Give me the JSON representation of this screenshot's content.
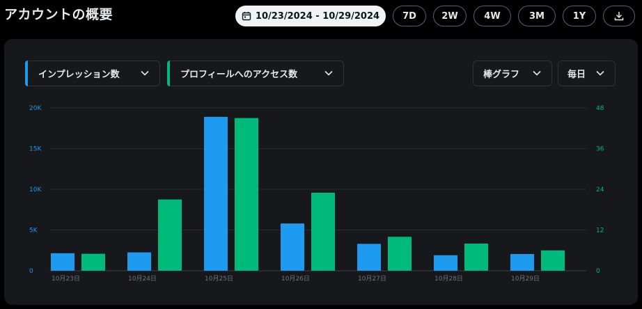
{
  "header": {
    "title": "アカウントの概要"
  },
  "toolbar": {
    "date_range": "10/23/2024 - 10/29/2024",
    "periods": [
      "7D",
      "2W",
      "4W",
      "3M",
      "1Y"
    ]
  },
  "controls": {
    "metric1": "インプレッション数",
    "metric2": "プロフィールへのアクセス数",
    "chart_type": "棒グラフ",
    "interval": "毎日"
  },
  "colors": {
    "impressions": "#1d9bf0",
    "profile_visits": "#00ba7c",
    "background": "#16181c"
  },
  "chart_data": {
    "type": "bar",
    "title": "",
    "categories": [
      "10月23日",
      "10月24日",
      "10月25日",
      "10月26日",
      "10月27日",
      "10月28日",
      "10月29日"
    ],
    "series": [
      {
        "name": "インプレッション数",
        "axis": "left",
        "values": [
          2150,
          2250,
          18900,
          5800,
          3300,
          1900,
          2050
        ]
      },
      {
        "name": "プロフィールへのアクセス数",
        "axis": "right",
        "values": [
          5,
          21,
          45,
          23,
          10,
          8,
          6
        ]
      }
    ],
    "y_left": {
      "ylim": [
        0,
        20000
      ],
      "ticks": [
        "0",
        "5K",
        "10K",
        "15K",
        "20K"
      ]
    },
    "y_right": {
      "ylim": [
        0,
        48
      ],
      "ticks": [
        "0",
        "12",
        "24",
        "36",
        "48"
      ]
    },
    "grid": true,
    "legend": "none"
  }
}
